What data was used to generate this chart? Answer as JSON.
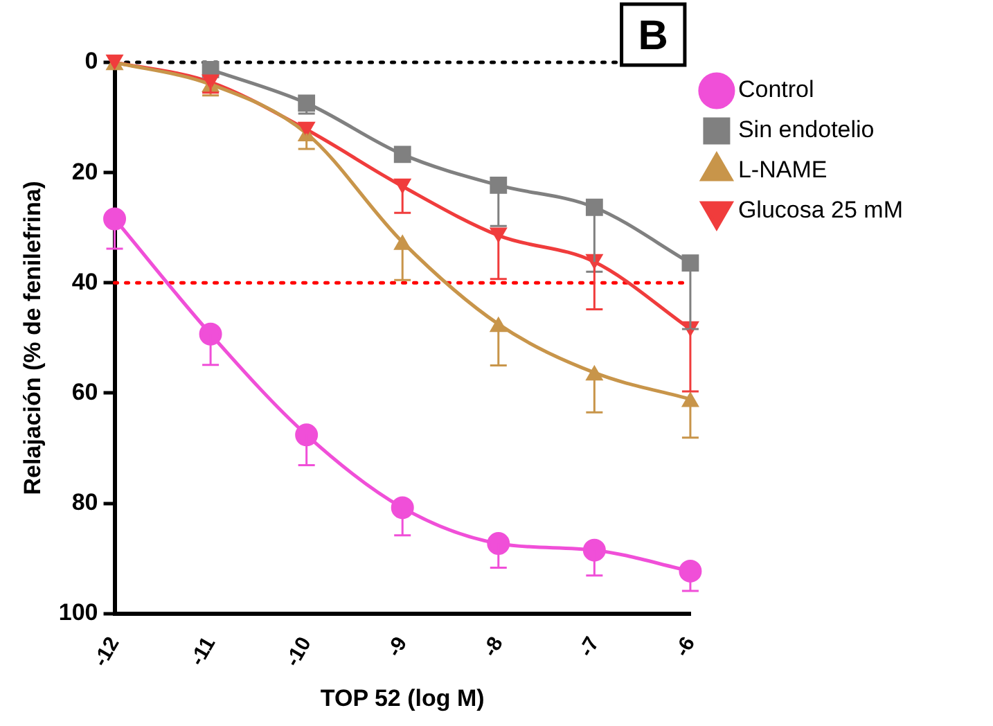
{
  "chart_data": {
    "type": "line",
    "xlabel": "TOP 52 (log M)",
    "ylabel": "Relajación (% de fenilefrina)",
    "annotations": [
      "B"
    ],
    "x": [
      -12,
      -11,
      -10,
      -9,
      -8,
      -7,
      -6
    ],
    "series": [
      {
        "name": "Control",
        "color": "#f04fd8",
        "marker": "circle",
        "values": [
          28.4,
          49.3,
          67.6,
          80.8,
          87.3,
          88.5,
          92.3
        ],
        "errors": [
          [
            28.4,
            33.8
          ],
          [
            49.3,
            54.9
          ],
          [
            67.6,
            73.1
          ],
          [
            80.8,
            85.8
          ],
          [
            87.3,
            91.7
          ],
          [
            88.5,
            93.1
          ],
          [
            92.3,
            95.9
          ]
        ]
      },
      {
        "name": "Sin endotelio",
        "color": "#808080",
        "marker": "square",
        "values": [
          null,
          1.3,
          7.4,
          16.7,
          22.3,
          26.3,
          36.4
        ],
        "errors": [
          null,
          null,
          [
            7.4,
            9.3
          ],
          null,
          [
            22.3,
            29.7
          ],
          [
            26.3,
            38
          ],
          [
            36.4,
            48.4
          ]
        ]
      },
      {
        "name": "L-NAME",
        "color": "#c8954a",
        "marker": "triangle",
        "values": [
          0,
          4,
          12.9,
          32.6,
          47.5,
          56.3,
          61.1
        ],
        "errors": [
          null,
          [
            4,
            6
          ],
          [
            12.9,
            15.7
          ],
          [
            32.6,
            39.5
          ],
          [
            47.5,
            55
          ],
          [
            56.3,
            63.5
          ],
          [
            61.1,
            68.1
          ]
        ]
      },
      {
        "name": "Glucosa 25 mM",
        "color": "#f03c3c",
        "marker": "triangle-down",
        "values": [
          0,
          3.6,
          12.2,
          22.5,
          31.4,
          36.2,
          48.4
        ],
        "errors": [
          null,
          [
            3.6,
            5.5
          ],
          null,
          [
            22.5,
            27.3
          ],
          [
            31.4,
            39.3
          ],
          [
            36.2,
            44.8
          ],
          [
            48.4,
            59.7
          ]
        ]
      }
    ],
    "xlim": [
      -12,
      -6
    ],
    "xticks": [
      -12,
      -11,
      -10,
      -9,
      -8,
      -7,
      -6
    ],
    "ylim": [
      100,
      0
    ],
    "yticks": [
      0,
      20,
      40,
      60,
      80,
      100
    ],
    "ref_lines": [
      {
        "axis": "y",
        "value": 0,
        "color": "#000000",
        "line_style": "dotted"
      },
      {
        "axis": "y",
        "value": 40,
        "color": "#ff0000",
        "line_style": "dotted"
      }
    ],
    "legend": "right",
    "grid": false
  }
}
